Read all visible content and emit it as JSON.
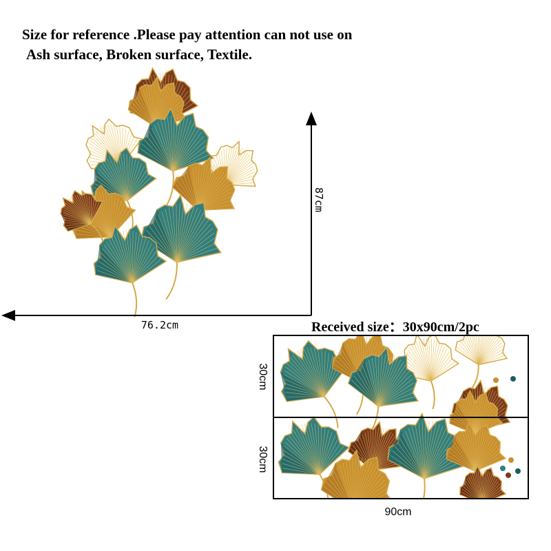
{
  "header": {
    "line1": "Size for reference .Please pay attention can not use on",
    "line2": "Ash surface, Broken surface, Textile."
  },
  "reference": {
    "height_label": "87cm",
    "width_label": "76.2cm"
  },
  "received": {
    "title": "Received size：30x90cm/2pc",
    "panel_heights": [
      "30cm",
      "30cm"
    ],
    "width_label": "90cm"
  }
}
